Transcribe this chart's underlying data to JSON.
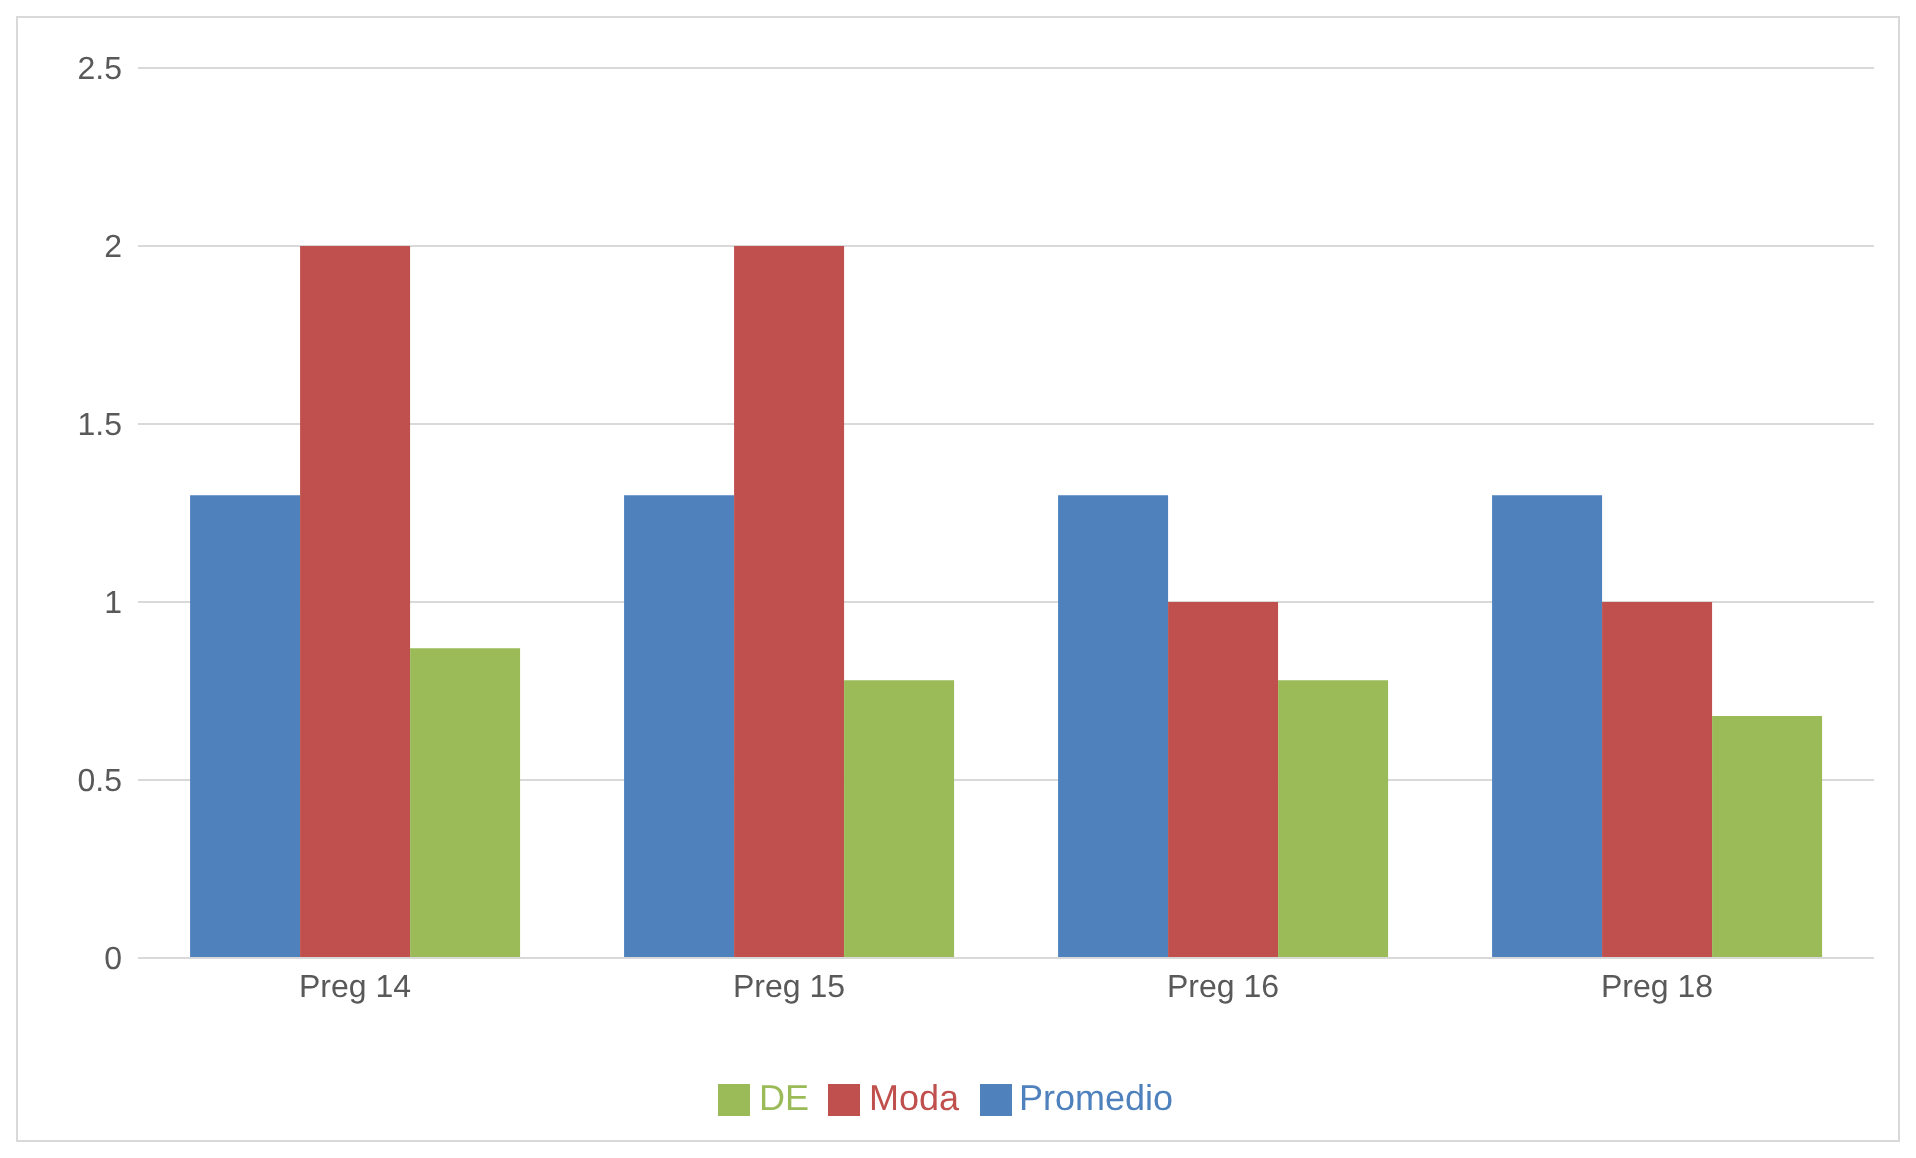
{
  "chart_data": {
    "type": "bar",
    "categories": [
      "Preg 14",
      "Preg 15",
      "Preg 16",
      "Preg 18"
    ],
    "series": [
      {
        "name": "Promedio",
        "color": "#4f81bd",
        "values": [
          1.3,
          1.3,
          1.3,
          1.3
        ]
      },
      {
        "name": "Moda",
        "color": "#c0504d",
        "values": [
          2,
          2,
          1,
          1
        ]
      },
      {
        "name": "DE",
        "color": "#9bbb59",
        "values": [
          0.87,
          0.78,
          0.78,
          0.68
        ]
      }
    ],
    "ylim": [
      0,
      2.5
    ],
    "yticks": [
      0,
      0.5,
      1,
      1.5,
      2,
      2.5
    ],
    "grid": "y",
    "legend": "bottom"
  }
}
